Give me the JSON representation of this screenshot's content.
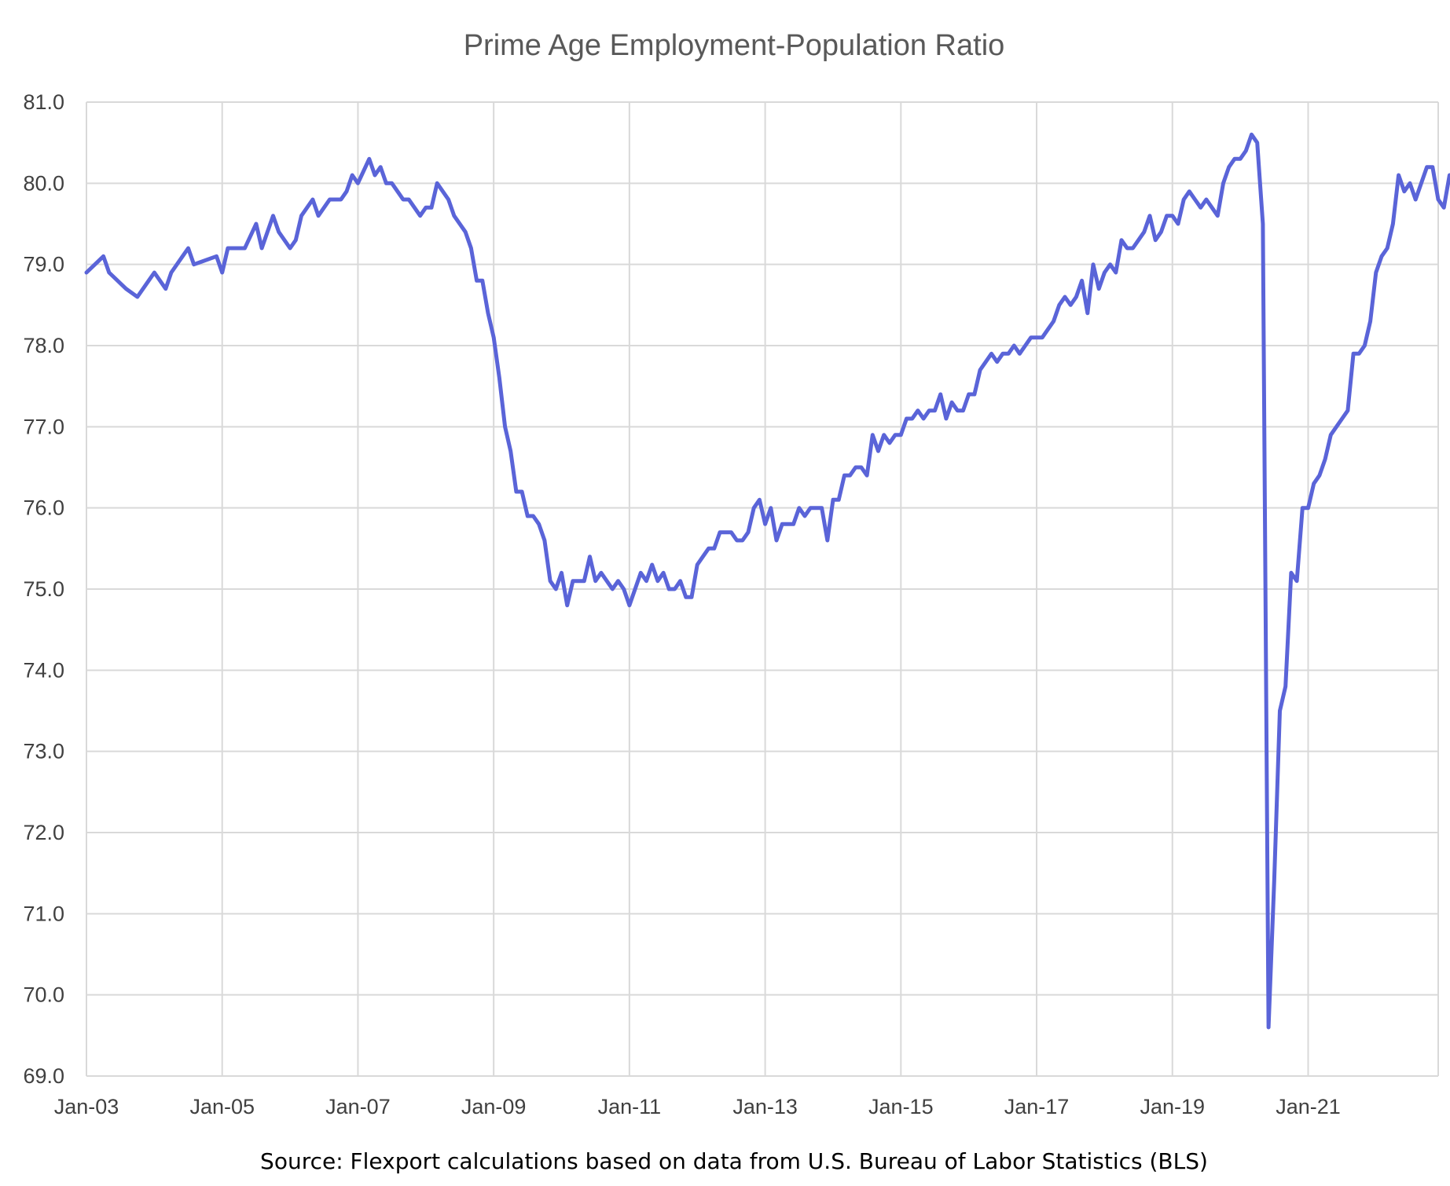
{
  "chart_data": {
    "type": "line",
    "title": "Prime Age Employment-Population Ratio",
    "xlabel": "",
    "ylabel": "",
    "ylim": [
      69.0,
      81.0
    ],
    "y_ticks": [
      "69.0",
      "70.0",
      "71.0",
      "72.0",
      "73.0",
      "74.0",
      "75.0",
      "76.0",
      "77.0",
      "78.0",
      "79.0",
      "80.0",
      "81.0"
    ],
    "x_ticks": [
      "Jan-03",
      "Jan-05",
      "Jan-07",
      "Jan-09",
      "Jan-11",
      "Jan-13",
      "Jan-15",
      "Jan-17",
      "Jan-19",
      "Jan-21"
    ],
    "x_range": [
      "Jan-03",
      "Dec-22"
    ],
    "grid": true,
    "legend": "none",
    "line_color": "#5a64d8",
    "series": [
      {
        "points": [
          [
            "Jan-03",
            78.9
          ],
          [
            "Apr-03",
            79.1
          ],
          [
            "May-03",
            78.9
          ],
          [
            "Aug-03",
            78.7
          ],
          [
            "Oct-03",
            78.6
          ],
          [
            "Dec-03",
            78.8
          ],
          [
            "Jan-04",
            78.9
          ],
          [
            "Mar-04",
            78.7
          ],
          [
            "Apr-04",
            78.9
          ],
          [
            "Jun-04",
            79.1
          ],
          [
            "Jul-04",
            79.2
          ],
          [
            "Aug-04",
            79.0
          ],
          [
            "Dec-04",
            79.1
          ],
          [
            "Jan-05",
            78.9
          ],
          [
            "Feb-05",
            79.2
          ],
          [
            "May-05",
            79.2
          ],
          [
            "Jul-05",
            79.5
          ],
          [
            "Aug-05",
            79.2
          ],
          [
            "Oct-05",
            79.6
          ],
          [
            "Nov-05",
            79.4
          ],
          [
            "Jan-06",
            79.2
          ],
          [
            "Feb-06",
            79.3
          ],
          [
            "Mar-06",
            79.6
          ],
          [
            "May-06",
            79.8
          ],
          [
            "Jun-06",
            79.6
          ],
          [
            "Aug-06",
            79.8
          ],
          [
            "Oct-06",
            79.8
          ],
          [
            "Nov-06",
            79.9
          ],
          [
            "Dec-06",
            80.1
          ],
          [
            "Jan-07",
            80.0
          ],
          [
            "Mar-07",
            80.3
          ],
          [
            "Apr-07",
            80.1
          ],
          [
            "May-07",
            80.2
          ],
          [
            "Jun-07",
            80.0
          ],
          [
            "Jul-07",
            80.0
          ],
          [
            "Sep-07",
            79.8
          ],
          [
            "Oct-07",
            79.8
          ],
          [
            "Dec-07",
            79.6
          ],
          [
            "Jan-08",
            79.7
          ],
          [
            "Feb-08",
            79.7
          ],
          [
            "Mar-08",
            80.0
          ],
          [
            "May-08",
            79.8
          ],
          [
            "Jun-08",
            79.6
          ],
          [
            "Aug-08",
            79.4
          ],
          [
            "Sep-08",
            79.2
          ],
          [
            "Oct-08",
            78.8
          ],
          [
            "Nov-08",
            78.8
          ],
          [
            "Dec-08",
            78.4
          ],
          [
            "Jan-09",
            78.1
          ],
          [
            "Feb-09",
            77.6
          ],
          [
            "Mar-09",
            77.0
          ],
          [
            "Apr-09",
            76.7
          ],
          [
            "May-09",
            76.2
          ],
          [
            "Jun-09",
            76.2
          ],
          [
            "Jul-09",
            75.9
          ],
          [
            "Aug-09",
            75.9
          ],
          [
            "Sep-09",
            75.8
          ],
          [
            "Oct-09",
            75.6
          ],
          [
            "Nov-09",
            75.1
          ],
          [
            "Dec-09",
            75.0
          ],
          [
            "Jan-10",
            75.2
          ],
          [
            "Feb-10",
            74.8
          ],
          [
            "Mar-10",
            75.1
          ],
          [
            "May-10",
            75.1
          ],
          [
            "Jun-10",
            75.4
          ],
          [
            "Jul-10",
            75.1
          ],
          [
            "Aug-10",
            75.2
          ],
          [
            "Oct-10",
            75.0
          ],
          [
            "Nov-10",
            75.1
          ],
          [
            "Dec-10",
            75.0
          ],
          [
            "Jan-11",
            74.8
          ],
          [
            "Mar-11",
            75.2
          ],
          [
            "Apr-11",
            75.1
          ],
          [
            "May-11",
            75.3
          ],
          [
            "Jun-11",
            75.1
          ],
          [
            "Jul-11",
            75.2
          ],
          [
            "Aug-11",
            75.0
          ],
          [
            "Sep-11",
            75.0
          ],
          [
            "Oct-11",
            75.1
          ],
          [
            "Nov-11",
            74.9
          ],
          [
            "Dec-11",
            74.9
          ],
          [
            "Jan-12",
            75.3
          ],
          [
            "Mar-12",
            75.5
          ],
          [
            "Apr-12",
            75.5
          ],
          [
            "May-12",
            75.7
          ],
          [
            "Jul-12",
            75.7
          ],
          [
            "Aug-12",
            75.6
          ],
          [
            "Sep-12",
            75.6
          ],
          [
            "Oct-12",
            75.7
          ],
          [
            "Nov-12",
            76.0
          ],
          [
            "Dec-12",
            76.1
          ],
          [
            "Jan-13",
            75.8
          ],
          [
            "Feb-13",
            76.0
          ],
          [
            "Mar-13",
            75.6
          ],
          [
            "Apr-13",
            75.8
          ],
          [
            "Jun-13",
            75.8
          ],
          [
            "Jul-13",
            76.0
          ],
          [
            "Aug-13",
            75.9
          ],
          [
            "Sep-13",
            76.0
          ],
          [
            "Nov-13",
            76.0
          ],
          [
            "Dec-13",
            75.6
          ],
          [
            "Jan-14",
            76.1
          ],
          [
            "Feb-14",
            76.1
          ],
          [
            "Mar-14",
            76.4
          ],
          [
            "Apr-14",
            76.4
          ],
          [
            "May-14",
            76.5
          ],
          [
            "Jun-14",
            76.5
          ],
          [
            "Jul-14",
            76.4
          ],
          [
            "Aug-14",
            76.9
          ],
          [
            "Sep-14",
            76.7
          ],
          [
            "Oct-14",
            76.9
          ],
          [
            "Nov-14",
            76.8
          ],
          [
            "Dec-14",
            76.9
          ],
          [
            "Jan-15",
            76.9
          ],
          [
            "Feb-15",
            77.1
          ],
          [
            "Mar-15",
            77.1
          ],
          [
            "Apr-15",
            77.2
          ],
          [
            "May-15",
            77.1
          ],
          [
            "Jun-15",
            77.2
          ],
          [
            "Jul-15",
            77.2
          ],
          [
            "Aug-15",
            77.4
          ],
          [
            "Sep-15",
            77.1
          ],
          [
            "Oct-15",
            77.3
          ],
          [
            "Nov-15",
            77.2
          ],
          [
            "Dec-15",
            77.2
          ],
          [
            "Jan-16",
            77.4
          ],
          [
            "Feb-16",
            77.4
          ],
          [
            "Mar-16",
            77.7
          ],
          [
            "Apr-16",
            77.8
          ],
          [
            "May-16",
            77.9
          ],
          [
            "Jun-16",
            77.8
          ],
          [
            "Jul-16",
            77.9
          ],
          [
            "Aug-16",
            77.9
          ],
          [
            "Sep-16",
            78.0
          ],
          [
            "Oct-16",
            77.9
          ],
          [
            "Nov-16",
            78.0
          ],
          [
            "Dec-16",
            78.1
          ],
          [
            "Feb-17",
            78.1
          ],
          [
            "Mar-17",
            78.2
          ],
          [
            "Apr-17",
            78.3
          ],
          [
            "May-17",
            78.5
          ],
          [
            "Jun-17",
            78.6
          ],
          [
            "Jul-17",
            78.5
          ],
          [
            "Aug-17",
            78.6
          ],
          [
            "Sep-17",
            78.8
          ],
          [
            "Oct-17",
            78.4
          ],
          [
            "Nov-17",
            79.0
          ],
          [
            "Dec-17",
            78.7
          ],
          [
            "Jan-18",
            78.9
          ],
          [
            "Feb-18",
            79.0
          ],
          [
            "Mar-18",
            78.9
          ],
          [
            "Apr-18",
            79.3
          ],
          [
            "May-18",
            79.2
          ],
          [
            "Jun-18",
            79.2
          ],
          [
            "Jul-18",
            79.3
          ],
          [
            "Aug-18",
            79.4
          ],
          [
            "Sep-18",
            79.6
          ],
          [
            "Oct-18",
            79.3
          ],
          [
            "Nov-18",
            79.4
          ],
          [
            "Dec-18",
            79.6
          ],
          [
            "Jan-19",
            79.6
          ],
          [
            "Feb-19",
            79.5
          ],
          [
            "Mar-19",
            79.8
          ],
          [
            "Apr-19",
            79.9
          ],
          [
            "May-19",
            79.8
          ],
          [
            "Jun-19",
            79.7
          ],
          [
            "Jul-19",
            79.8
          ],
          [
            "Aug-19",
            79.7
          ],
          [
            "Sep-19",
            79.6
          ],
          [
            "Oct-19",
            80.0
          ],
          [
            "Nov-19",
            80.2
          ],
          [
            "Dec-19",
            80.3
          ],
          [
            "Jan-20",
            80.3
          ],
          [
            "Feb-20",
            80.4
          ],
          [
            "Mar-20",
            80.6
          ],
          [
            "Apr-20",
            80.5
          ],
          [
            "May-20",
            79.5
          ],
          [
            "Jun-20",
            69.6
          ],
          [
            "Jul-20",
            71.4
          ],
          [
            "Aug-20",
            73.5
          ],
          [
            "Sep-20",
            73.8
          ],
          [
            "Oct-20",
            75.2
          ],
          [
            "Nov-20",
            75.1
          ],
          [
            "Dec-20",
            76.0
          ],
          [
            "Jan-21",
            76.0
          ],
          [
            "Feb-21",
            76.3
          ],
          [
            "Mar-21",
            76.4
          ],
          [
            "Apr-21",
            76.6
          ],
          [
            "May-21",
            76.9
          ],
          [
            "Jun-21",
            77.0
          ],
          [
            "Jul-21",
            77.1
          ],
          [
            "Aug-21",
            77.2
          ],
          [
            "Sep-21",
            77.9
          ],
          [
            "Oct-21",
            77.9
          ],
          [
            "Nov-21",
            78.0
          ],
          [
            "Dec-21",
            78.3
          ],
          [
            "Jan-22",
            78.9
          ],
          [
            "Feb-22",
            79.1
          ],
          [
            "Mar-22",
            79.2
          ],
          [
            "Apr-22",
            79.5
          ],
          [
            "May-22",
            80.1
          ],
          [
            "Jun-22",
            79.9
          ],
          [
            "Jul-22",
            80.0
          ],
          [
            "Aug-22",
            79.8
          ],
          [
            "Sep-22",
            80.0
          ],
          [
            "Oct-22",
            80.2
          ],
          [
            "Nov-22",
            80.2
          ],
          [
            "Dec-22",
            79.8
          ],
          [
            "Jan-23",
            79.7
          ],
          [
            "Feb-23",
            80.1
          ]
        ]
      }
    ],
    "source": "Source: Flexport calculations based on data from U.S. Bureau of Labor Statistics (BLS)"
  }
}
